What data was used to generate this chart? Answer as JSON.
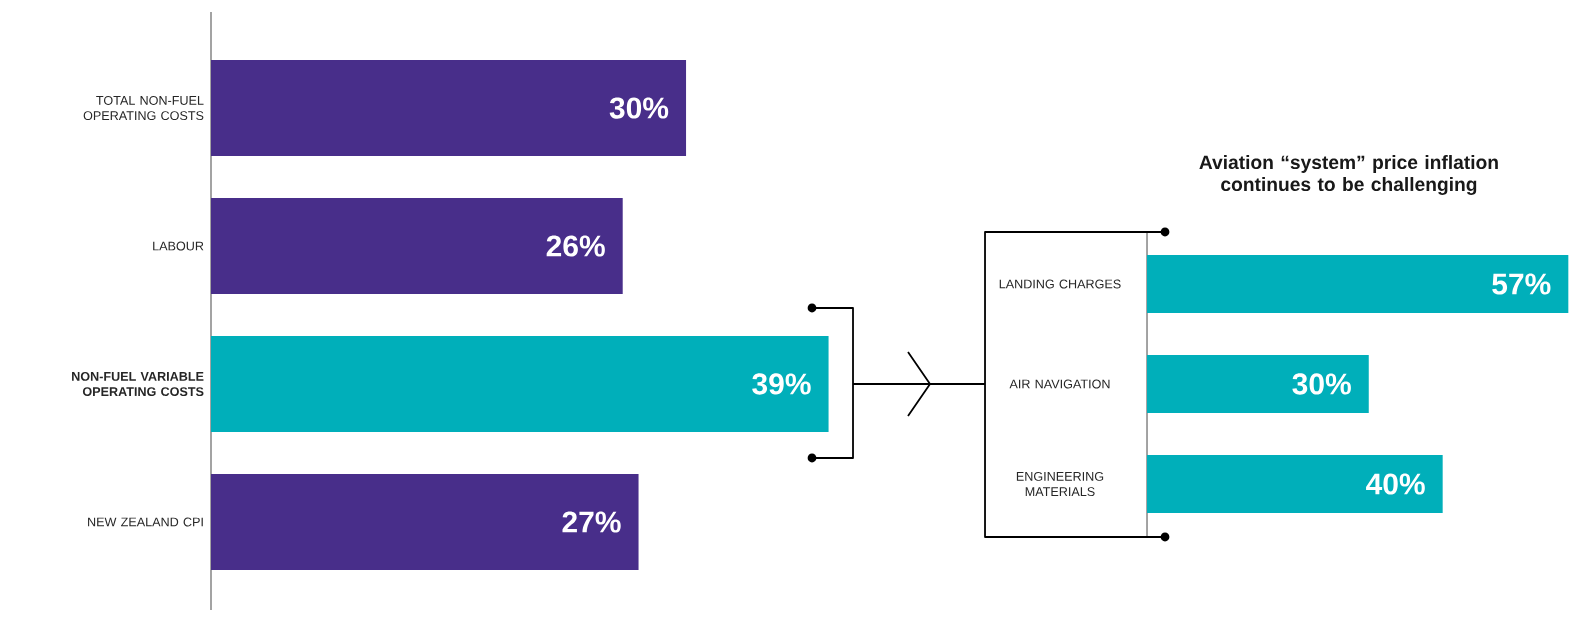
{
  "chart_data": [
    {
      "type": "bar",
      "orientation": "horizontal",
      "tick_labels": "y",
      "categories": [
        "TOTAL NON-FUEL OPERATING COSTS",
        "LABOUR",
        "NON-FUEL VARIABLE OPERATING COSTS",
        "NEW ZEALAND CPI"
      ],
      "values": [
        30,
        26,
        39,
        27
      ],
      "colors": [
        "#482e8a",
        "#482e8a",
        "#00afba",
        "#482e8a"
      ],
      "value_labels": [
        "30%",
        "26%",
        "39%",
        "27%"
      ]
    },
    {
      "type": "bar",
      "orientation": "horizontal",
      "tick_labels": "y",
      "title": "Aviation “system” price inflation continues to be challenging",
      "categories": [
        "LANDING CHARGES",
        "AIR NAVIGATION",
        "ENGINEERING MATERIALS"
      ],
      "values": [
        57,
        30,
        40
      ],
      "colors": [
        "#00afba",
        "#00afba",
        "#00afba"
      ],
      "value_labels": [
        "57%",
        "30%",
        "40%"
      ]
    }
  ]
}
